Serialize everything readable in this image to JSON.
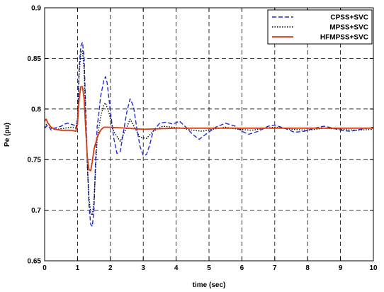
{
  "chart_data": {
    "type": "line",
    "title": "",
    "xlabel": "time (sec)",
    "ylabel": "Pe (pu)",
    "xlim": [
      0,
      10
    ],
    "ylim": [
      0.65,
      0.9
    ],
    "xticks": [
      "0",
      "1",
      "2",
      "3",
      "4",
      "5",
      "6",
      "7",
      "8",
      "9",
      "10"
    ],
    "yticks": [
      "0.65",
      "0.7",
      "0.75",
      "0.8",
      "0.85",
      "0.9"
    ],
    "grid": true,
    "legend_position": "top-right",
    "series": [
      {
        "name": "CPSS+SVC",
        "color": "#1f2fd0",
        "style": "dashed",
        "points": [
          [
            0.0,
            0.781
          ],
          [
            0.1,
            0.784
          ],
          [
            0.2,
            0.779
          ],
          [
            0.3,
            0.781
          ],
          [
            0.4,
            0.782
          ],
          [
            0.5,
            0.783
          ],
          [
            0.6,
            0.785
          ],
          [
            0.7,
            0.786
          ],
          [
            0.8,
            0.785
          ],
          [
            0.9,
            0.784
          ],
          [
            0.95,
            0.781
          ],
          [
            1.0,
            0.79
          ],
          [
            1.05,
            0.84
          ],
          [
            1.1,
            0.862
          ],
          [
            1.15,
            0.866
          ],
          [
            1.2,
            0.852
          ],
          [
            1.25,
            0.8
          ],
          [
            1.3,
            0.745
          ],
          [
            1.35,
            0.705
          ],
          [
            1.4,
            0.686
          ],
          [
            1.45,
            0.684
          ],
          [
            1.5,
            0.7
          ],
          [
            1.55,
            0.75
          ],
          [
            1.6,
            0.783
          ],
          [
            1.65,
            0.796
          ],
          [
            1.7,
            0.812
          ],
          [
            1.8,
            0.828
          ],
          [
            1.85,
            0.832
          ],
          [
            1.9,
            0.826
          ],
          [
            2.0,
            0.798
          ],
          [
            2.1,
            0.772
          ],
          [
            2.2,
            0.756
          ],
          [
            2.3,
            0.758
          ],
          [
            2.4,
            0.778
          ],
          [
            2.5,
            0.797
          ],
          [
            2.6,
            0.81
          ],
          [
            2.7,
            0.803
          ],
          [
            2.8,
            0.782
          ],
          [
            2.9,
            0.763
          ],
          [
            3.0,
            0.754
          ],
          [
            3.1,
            0.755
          ],
          [
            3.2,
            0.765
          ],
          [
            3.3,
            0.778
          ],
          [
            3.5,
            0.786
          ],
          [
            3.7,
            0.787
          ],
          [
            3.9,
            0.785
          ],
          [
            4.1,
            0.788
          ],
          [
            4.3,
            0.782
          ],
          [
            4.5,
            0.775
          ],
          [
            4.7,
            0.77
          ],
          [
            4.9,
            0.775
          ],
          [
            5.2,
            0.782
          ],
          [
            5.5,
            0.786
          ],
          [
            5.8,
            0.783
          ],
          [
            6.0,
            0.778
          ],
          [
            6.2,
            0.775
          ],
          [
            6.5,
            0.778
          ],
          [
            6.8,
            0.783
          ],
          [
            7.0,
            0.784
          ],
          [
            7.3,
            0.781
          ],
          [
            7.6,
            0.777
          ],
          [
            7.9,
            0.778
          ],
          [
            8.2,
            0.781
          ],
          [
            8.5,
            0.783
          ],
          [
            8.8,
            0.781
          ],
          [
            9.0,
            0.779
          ],
          [
            9.3,
            0.778
          ],
          [
            9.6,
            0.78
          ],
          [
            10.0,
            0.782
          ]
        ]
      },
      {
        "name": "MPSS+SVC",
        "color": "#000000",
        "style": "dotted",
        "points": [
          [
            0.0,
            0.782
          ],
          [
            0.1,
            0.787
          ],
          [
            0.2,
            0.781
          ],
          [
            0.4,
            0.78
          ],
          [
            0.6,
            0.781
          ],
          [
            0.8,
            0.782
          ],
          [
            0.95,
            0.781
          ],
          [
            1.0,
            0.79
          ],
          [
            1.05,
            0.835
          ],
          [
            1.1,
            0.855
          ],
          [
            1.15,
            0.858
          ],
          [
            1.2,
            0.84
          ],
          [
            1.25,
            0.79
          ],
          [
            1.3,
            0.745
          ],
          [
            1.35,
            0.712
          ],
          [
            1.4,
            0.697
          ],
          [
            1.45,
            0.695
          ],
          [
            1.5,
            0.708
          ],
          [
            1.55,
            0.74
          ],
          [
            1.6,
            0.77
          ],
          [
            1.7,
            0.792
          ],
          [
            1.8,
            0.804
          ],
          [
            1.85,
            0.806
          ],
          [
            1.95,
            0.797
          ],
          [
            2.1,
            0.778
          ],
          [
            2.3,
            0.768
          ],
          [
            2.5,
            0.782
          ],
          [
            2.6,
            0.79
          ],
          [
            2.7,
            0.784
          ],
          [
            2.9,
            0.772
          ],
          [
            3.1,
            0.771
          ],
          [
            3.3,
            0.778
          ],
          [
            3.6,
            0.783
          ],
          [
            3.9,
            0.782
          ],
          [
            4.2,
            0.781
          ],
          [
            4.5,
            0.779
          ],
          [
            4.8,
            0.778
          ],
          [
            5.1,
            0.78
          ],
          [
            5.5,
            0.782
          ],
          [
            5.9,
            0.78
          ],
          [
            6.3,
            0.779
          ],
          [
            6.7,
            0.781
          ],
          [
            7.0,
            0.782
          ],
          [
            7.5,
            0.78
          ],
          [
            8.0,
            0.779
          ],
          [
            8.5,
            0.781
          ],
          [
            9.0,
            0.78
          ],
          [
            9.5,
            0.779
          ],
          [
            10.0,
            0.78
          ]
        ]
      },
      {
        "name": "HFMPSS+SVC",
        "color": "#d83a10",
        "style": "solid",
        "points": [
          [
            0.0,
            0.788
          ],
          [
            0.05,
            0.79
          ],
          [
            0.1,
            0.786
          ],
          [
            0.2,
            0.782
          ],
          [
            0.3,
            0.78
          ],
          [
            0.5,
            0.779
          ],
          [
            0.8,
            0.779
          ],
          [
            0.95,
            0.778
          ],
          [
            1.0,
            0.785
          ],
          [
            1.05,
            0.81
          ],
          [
            1.1,
            0.822
          ],
          [
            1.15,
            0.822
          ],
          [
            1.2,
            0.81
          ],
          [
            1.25,
            0.78
          ],
          [
            1.3,
            0.752
          ],
          [
            1.35,
            0.74
          ],
          [
            1.4,
            0.739
          ],
          [
            1.45,
            0.748
          ],
          [
            1.5,
            0.76
          ],
          [
            1.6,
            0.772
          ],
          [
            1.7,
            0.779
          ],
          [
            1.8,
            0.782
          ],
          [
            2.0,
            0.782
          ],
          [
            2.5,
            0.781
          ],
          [
            3.0,
            0.78
          ],
          [
            4.0,
            0.781
          ],
          [
            5.0,
            0.781
          ],
          [
            6.0,
            0.781
          ],
          [
            7.0,
            0.781
          ],
          [
            8.0,
            0.781
          ],
          [
            9.0,
            0.781
          ],
          [
            10.0,
            0.781
          ]
        ]
      }
    ]
  }
}
